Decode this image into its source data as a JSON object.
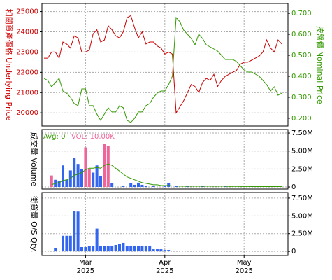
{
  "chart_data": [
    {
      "type": "line",
      "ylabel": "相關資產價格 Underlying Price",
      "y2label": "按盤價 Nominal Price",
      "ylim": [
        19350,
        25400
      ],
      "yticks": [
        20000,
        21000,
        22000,
        23000,
        24000,
        25000
      ],
      "y2lim": [
        0.163,
        0.747
      ],
      "y2ticks": [
        {
          "value": 0.2,
          "label": "0.200"
        },
        {
          "value": 0.3,
          "label": "0.300"
        },
        {
          "value": 0.4,
          "label": "0.400"
        },
        {
          "value": 0.5,
          "label": "0.500"
        },
        {
          "value": 0.6,
          "label": "0.600"
        },
        {
          "value": 0.7,
          "label": "0.700"
        }
      ],
      "grid": true,
      "series": [
        {
          "name": "Underlying Price",
          "color": "#cc0000",
          "values": [
            22700,
            22700,
            23000,
            23000,
            22700,
            23500,
            23400,
            23200,
            23800,
            23700,
            23000,
            23000,
            23100,
            23900,
            24100,
            23500,
            23600,
            24300,
            24100,
            23800,
            23700,
            24000,
            24700,
            24800,
            24200,
            23700,
            24000,
            23400,
            23500,
            23500,
            23300,
            23200,
            22900,
            23000,
            22900,
            20000,
            20300,
            20600,
            21000,
            21400,
            21300,
            21000,
            21500,
            21700,
            21600,
            21900,
            21300,
            21600,
            21800,
            21900,
            22000,
            22100,
            22400,
            22500,
            22500,
            22600,
            22700,
            22800,
            23000,
            23600,
            23200,
            23000,
            23600,
            23400
          ]
        },
        {
          "name": "Nominal Price",
          "color": "#339900",
          "axis": "y2",
          "values": [
            0.39,
            0.38,
            0.35,
            0.37,
            0.39,
            0.33,
            0.32,
            0.3,
            0.27,
            0.26,
            0.34,
            0.34,
            0.26,
            0.26,
            0.22,
            0.19,
            0.22,
            0.25,
            0.23,
            0.23,
            0.26,
            0.25,
            0.19,
            0.18,
            0.2,
            0.23,
            0.23,
            0.26,
            0.27,
            0.3,
            0.32,
            0.33,
            0.33,
            0.36,
            0.4,
            0.68,
            0.66,
            0.62,
            0.6,
            0.58,
            0.55,
            0.6,
            0.58,
            0.55,
            0.54,
            0.53,
            0.52,
            0.5,
            0.48,
            0.48,
            0.48,
            0.47,
            0.45,
            0.43,
            0.42,
            0.42,
            0.41,
            0.4,
            0.38,
            0.36,
            0.33,
            0.35,
            0.31,
            0.32
          ]
        }
      ]
    },
    {
      "type": "bar",
      "ylabel": "成交量 Volume",
      "annotations": [
        "Avg: 0",
        "VOL: 10.00K"
      ],
      "ylim": [
        -290000,
        7990000
      ],
      "yticks": [
        0,
        {
          "value": 2500000,
          "label": "2.50M"
        },
        {
          "value": 5000000,
          "label": "5.00M"
        },
        {
          "value": 7500000,
          "label": "7.50M"
        }
      ],
      "grid": true,
      "values": [
        null,
        null,
        1600000,
        1000000,
        800000,
        3000000,
        1000000,
        2300000,
        4000000,
        3200000,
        2500000,
        5500000,
        2500000,
        2000000,
        3000000,
        1500000,
        6000000,
        5700000,
        500000,
        null,
        null,
        200000,
        null,
        500000,
        300000,
        600000,
        300000,
        200000,
        null,
        200000,
        null,
        null,
        100000,
        500000,
        null,
        100000,
        null,
        null,
        100000,
        null,
        null,
        null,
        100000,
        null,
        null,
        null,
        null,
        null,
        100000,
        null,
        null,
        null,
        null,
        null,
        null,
        null,
        null,
        null,
        null,
        null,
        null,
        null,
        null,
        null
      ],
      "colors": [
        "#3366ee",
        "#3366ee",
        "#ee6699",
        "#3366ee",
        "#3366ee",
        "#3366ee",
        "#3366ee",
        "#3366ee",
        "#3366ee",
        "#3366ee",
        "#3366ee",
        "#ee6699",
        "#ee6699",
        "#3366ee",
        "#3366ee",
        "#3366ee",
        "#ee6699",
        "#ee6699",
        "#3366ee",
        "#3366ee",
        "#3366ee",
        "#3366ee",
        "#3366ee",
        "#3366ee",
        "#3366ee",
        "#3366ee",
        "#3366ee",
        "#3366ee",
        "#3366ee",
        "#3366ee",
        "#3366ee",
        "#3366ee",
        "#3366ee",
        "#3366ee",
        "#3366ee",
        "#3366ee",
        "#3366ee",
        "#3366ee",
        "#3366ee",
        "#3366ee",
        "#3366ee",
        "#3366ee",
        "#3366ee",
        "#3366ee",
        "#3366ee",
        "#3366ee",
        "#3366ee",
        "#3366ee",
        "#3366ee",
        "#3366ee",
        "#3366ee",
        "#3366ee",
        "#3366ee",
        "#3366ee",
        "#3366ee",
        "#3366ee",
        "#3366ee",
        "#3366ee",
        "#3366ee",
        "#3366ee",
        "#3366ee",
        "#3366ee",
        "#3366ee",
        "#3366ee"
      ],
      "avg_color": "#339900",
      "avg_values": [
        null,
        null,
        300000,
        500000,
        600000,
        900000,
        1000000,
        1200000,
        1600000,
        1800000,
        2000000,
        2400000,
        2600000,
        2600000,
        2700000,
        2600000,
        3000000,
        3200000,
        3000000,
        2600000,
        2200000,
        1800000,
        1400000,
        1200000,
        1000000,
        800000,
        600000,
        500000,
        400000,
        300000,
        300000,
        200000,
        200000,
        200000,
        150000,
        150000,
        100000,
        100000,
        100000,
        100000,
        100000,
        100000,
        100000,
        100000,
        100000,
        100000,
        100000,
        100000,
        100000,
        80000,
        80000,
        80000,
        60000,
        60000,
        60000,
        50000,
        50000,
        50000,
        50000,
        50000,
        50000,
        50000,
        50000,
        50000
      ]
    },
    {
      "type": "bar",
      "ylabel": "街貨量 O/S Qty.",
      "ylim": [
        -580000,
        8280000
      ],
      "yticks": [
        0,
        {
          "value": 2500000,
          "label": "2.50M"
        },
        {
          "value": 5000000,
          "label": "5.00M"
        },
        {
          "value": 7500000,
          "label": "7.50M"
        }
      ],
      "grid": true,
      "color": "#3366ee",
      "values": [
        null,
        null,
        null,
        500000,
        null,
        2200000,
        2200000,
        2200000,
        5700000,
        5600000,
        600000,
        600000,
        700000,
        800000,
        3200000,
        700000,
        700000,
        700000,
        800000,
        900000,
        1000000,
        1200000,
        800000,
        800000,
        800000,
        800000,
        800000,
        800000,
        800000,
        300000,
        300000,
        300000,
        200000,
        200000,
        null,
        null,
        null,
        null,
        null,
        null,
        null,
        null,
        null,
        null,
        null,
        null,
        null,
        null,
        null,
        null,
        null,
        null,
        null,
        null,
        null,
        null,
        null,
        null,
        null,
        null,
        null,
        null,
        null,
        null
      ],
      "categories": [
        null,
        null,
        null,
        null,
        null,
        null,
        null,
        null,
        null,
        null,
        null,
        "Mar 2025",
        null,
        null,
        null,
        null,
        null,
        null,
        null,
        null,
        null,
        null,
        null,
        null,
        null,
        null,
        null,
        null,
        null,
        null,
        null,
        null,
        "Apr 2025",
        null,
        null,
        null,
        null,
        null,
        null,
        null,
        null,
        null,
        null,
        null,
        null,
        null,
        null,
        null,
        null,
        null,
        null,
        null,
        null,
        "May 2025",
        null,
        null,
        null,
        null,
        null,
        null,
        null,
        null,
        null,
        null
      ]
    }
  ]
}
